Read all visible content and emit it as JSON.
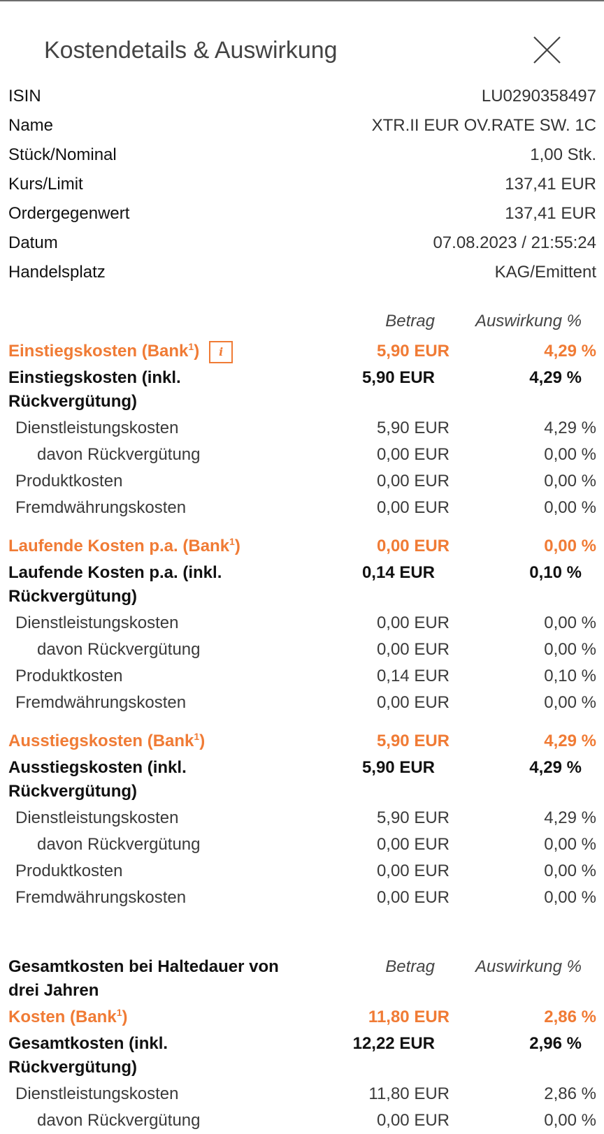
{
  "dialog": {
    "title": "Kostendetails & Auswirkung",
    "close_icon": "close-icon"
  },
  "order_info": [
    {
      "label": "ISIN",
      "value": "LU0290358497"
    },
    {
      "label": "Name",
      "value": "XTR.II EUR OV.RATE SW. 1C"
    },
    {
      "label": "Stück/Nominal",
      "value": "1,00 Stk."
    },
    {
      "label": "Kurs/Limit",
      "value": "137,41 EUR"
    },
    {
      "label": "Ordergegenwert",
      "value": "137,41 EUR"
    },
    {
      "label": "Datum",
      "value": "07.08.2023 / 21:55:24"
    },
    {
      "label": "Handelsplatz",
      "value": "KAG/Emittent"
    }
  ],
  "columns": {
    "amount": "Betrag",
    "impact": "Auswirkung %"
  },
  "footnote_mark": "1",
  "info_icon": "i",
  "sections": [
    {
      "bank_label": "Einstiegskosten (Bank",
      "bank_amount": "5,90 EUR",
      "bank_pct": "4,29 %",
      "total_label": "Einstiegskosten (inkl. Rückvergütung)",
      "total_amount": "5,90 EUR",
      "total_pct": "4,29 %",
      "items": [
        {
          "label": "Dienstleistungskosten",
          "amount": "5,90 EUR",
          "pct": "4,29 %",
          "level": 1
        },
        {
          "label": "davon Rückvergütung",
          "amount": "0,00 EUR",
          "pct": "0,00 %",
          "level": 2
        },
        {
          "label": "Produktkosten",
          "amount": "0,00 EUR",
          "pct": "0,00 %",
          "level": 1
        },
        {
          "label": "Fremdwährungskosten",
          "amount": "0,00 EUR",
          "pct": "0,00 %",
          "level": 1
        }
      ]
    },
    {
      "bank_label": "Laufende Kosten p.a. (Bank",
      "bank_amount": "0,00 EUR",
      "bank_pct": "0,00 %",
      "total_label": "Laufende Kosten p.a. (inkl. Rückvergütung)",
      "total_amount": "0,14 EUR",
      "total_pct": "0,10 %",
      "items": [
        {
          "label": "Dienstleistungskosten",
          "amount": "0,00 EUR",
          "pct": "0,00 %",
          "level": 1
        },
        {
          "label": "davon Rückvergütung",
          "amount": "0,00 EUR",
          "pct": "0,00 %",
          "level": 2
        },
        {
          "label": "Produktkosten",
          "amount": "0,14 EUR",
          "pct": "0,10 %",
          "level": 1
        },
        {
          "label": "Fremdwährungskosten",
          "amount": "0,00 EUR",
          "pct": "0,00 %",
          "level": 1
        }
      ]
    },
    {
      "bank_label": "Ausstiegskosten (Bank",
      "bank_amount": "5,90 EUR",
      "bank_pct": "4,29 %",
      "total_label": "Ausstiegskosten (inkl. Rückvergütung)",
      "total_amount": "5,90 EUR",
      "total_pct": "4,29 %",
      "items": [
        {
          "label": "Dienstleistungskosten",
          "amount": "5,90 EUR",
          "pct": "4,29 %",
          "level": 1
        },
        {
          "label": "davon Rückvergütung",
          "amount": "0,00 EUR",
          "pct": "0,00 %",
          "level": 2
        },
        {
          "label": "Produktkosten",
          "amount": "0,00 EUR",
          "pct": "0,00 %",
          "level": 1
        },
        {
          "label": "Fremdwährungskosten",
          "amount": "0,00 EUR",
          "pct": "0,00 %",
          "level": 1
        }
      ]
    }
  ],
  "total": {
    "heading": "Gesamtkosten bei Haltedauer von drei Jahren",
    "bank_label": "Kosten (Bank",
    "bank_amount": "11,80 EUR",
    "bank_pct": "2,86 %",
    "total_label": "Gesamtkosten (inkl. Rückvergütung)",
    "total_amount": "12,22 EUR",
    "total_pct": "2,96 %",
    "items": [
      {
        "label": "Dienstleistungskosten",
        "amount": "11,80 EUR",
        "pct": "2,86 %",
        "level": 1
      },
      {
        "label": "davon Rückvergütung",
        "amount": "0,00 EUR",
        "pct": "0,00 %",
        "level": 2
      }
    ]
  },
  "colors": {
    "accent": "#f07b35"
  }
}
